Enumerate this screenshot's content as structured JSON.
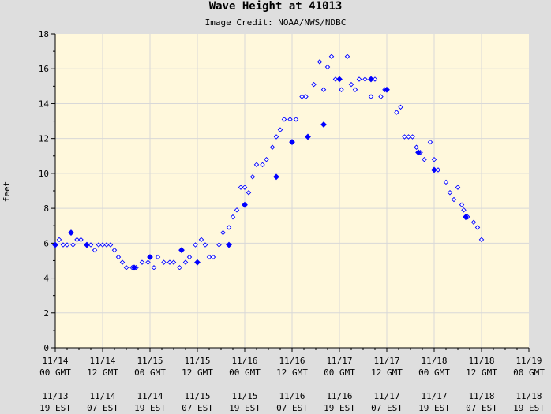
{
  "chart_data": {
    "type": "scatter",
    "title": "Wave Height at 41013",
    "subtitle": "Image Credit: NOAA/NWS/NDBC",
    "xlabel": "",
    "ylabel": "feet",
    "ylim": [
      0,
      18
    ],
    "yticks": [
      "0",
      "2",
      "4",
      "6",
      "8",
      "10",
      "12",
      "14",
      "16",
      "18"
    ],
    "xlim_hours": [
      0,
      120
    ],
    "xticks": [
      {
        "gmt": [
          "11/14",
          "00 GMT"
        ],
        "est": [
          "11/13",
          "19 EST"
        ]
      },
      {
        "gmt": [
          "11/14",
          "12 GMT"
        ],
        "est": [
          "11/14",
          "07 EST"
        ]
      },
      {
        "gmt": [
          "11/15",
          "00 GMT"
        ],
        "est": [
          "11/14",
          "19 EST"
        ]
      },
      {
        "gmt": [
          "11/15",
          "12 GMT"
        ],
        "est": [
          "11/15",
          "07 EST"
        ]
      },
      {
        "gmt": [
          "11/16",
          "00 GMT"
        ],
        "est": [
          "11/15",
          "19 EST"
        ]
      },
      {
        "gmt": [
          "11/16",
          "12 GMT"
        ],
        "est": [
          "11/16",
          "07 EST"
        ]
      },
      {
        "gmt": [
          "11/17",
          "00 GMT"
        ],
        "est": [
          "11/16",
          "19 EST"
        ]
      },
      {
        "gmt": [
          "11/17",
          "12 GMT"
        ],
        "est": [
          "11/17",
          "07 EST"
        ]
      },
      {
        "gmt": [
          "11/18",
          "00 GMT"
        ],
        "est": [
          "11/17",
          "19 EST"
        ]
      },
      {
        "gmt": [
          "11/18",
          "12 GMT"
        ],
        "est": [
          "11/18",
          "07 EST"
        ]
      },
      {
        "gmt": [
          "11/19",
          "00 GMT"
        ],
        "est": [
          "11/18",
          "19 EST"
        ]
      }
    ],
    "grid": true,
    "colors": {
      "plot_background": "#fff8dc",
      "page_background": "#dedede",
      "marker": "#0000ff",
      "grid": "#d8d8d8"
    },
    "series": [
      {
        "name": "",
        "marker": "hollow-diamond",
        "x": [
          1,
          2,
          3,
          4.5,
          5.5,
          6.5,
          8,
          9,
          10,
          11,
          12,
          13,
          14,
          15,
          16,
          17,
          18,
          19.5,
          20.5,
          22,
          23.5,
          25,
          26,
          27.5,
          29,
          30,
          31.5,
          33,
          34,
          35.5,
          37,
          38,
          39,
          40,
          41.5,
          42.5,
          44,
          45,
          46,
          47,
          48,
          49,
          50,
          51,
          52.5,
          53.5,
          55,
          56,
          57,
          58,
          59.5,
          61,
          62.5,
          63.5,
          65.5,
          67,
          68,
          69,
          70,
          71,
          72.5,
          74,
          75,
          76,
          77,
          78.5,
          80,
          81,
          82.5,
          83.5,
          86.5,
          87.5,
          88.5,
          89.5,
          90.5,
          91.5,
          92.5,
          93.5,
          95,
          96,
          97,
          99,
          100,
          101,
          102,
          103,
          103.5,
          104.5,
          106,
          107,
          108
        ],
        "y": [
          6.2,
          5.9,
          5.9,
          5.9,
          6.2,
          6.2,
          5.9,
          5.9,
          5.6,
          5.9,
          5.9,
          5.9,
          5.9,
          5.6,
          5.2,
          4.9,
          4.6,
          4.6,
          4.6,
          4.9,
          4.9,
          4.6,
          5.2,
          4.9,
          4.9,
          4.9,
          4.6,
          4.9,
          5.2,
          5.9,
          6.2,
          5.9,
          5.2,
          5.2,
          5.9,
          6.6,
          6.9,
          7.5,
          7.9,
          9.2,
          9.2,
          8.9,
          9.8,
          10.5,
          10.5,
          10.8,
          11.5,
          12.1,
          12.5,
          13.1,
          13.1,
          13.1,
          14.4,
          14.4,
          15.1,
          16.4,
          14.8,
          16.1,
          16.7,
          15.4,
          14.8,
          16.7,
          15.1,
          14.8,
          15.4,
          15.4,
          14.4,
          15.4,
          14.4,
          14.8,
          13.5,
          13.8,
          12.1,
          12.1,
          12.1,
          11.5,
          11.2,
          10.8,
          11.8,
          10.8,
          10.2,
          9.5,
          8.9,
          8.5,
          9.2,
          8.2,
          7.9,
          7.5,
          7.2,
          6.9,
          6.2
        ]
      },
      {
        "name": "",
        "marker": "filled-diamond",
        "x": [
          0,
          4,
          8,
          20,
          24,
          32,
          36,
          44,
          48,
          56,
          60,
          64,
          68,
          72,
          80,
          84,
          92,
          96,
          104
        ],
        "y": [
          5.9,
          6.6,
          5.9,
          4.6,
          5.2,
          5.6,
          4.9,
          5.9,
          8.2,
          9.8,
          11.8,
          12.1,
          12.8,
          15.4,
          15.4,
          14.8,
          11.2,
          10.2,
          7.5
        ]
      }
    ]
  }
}
